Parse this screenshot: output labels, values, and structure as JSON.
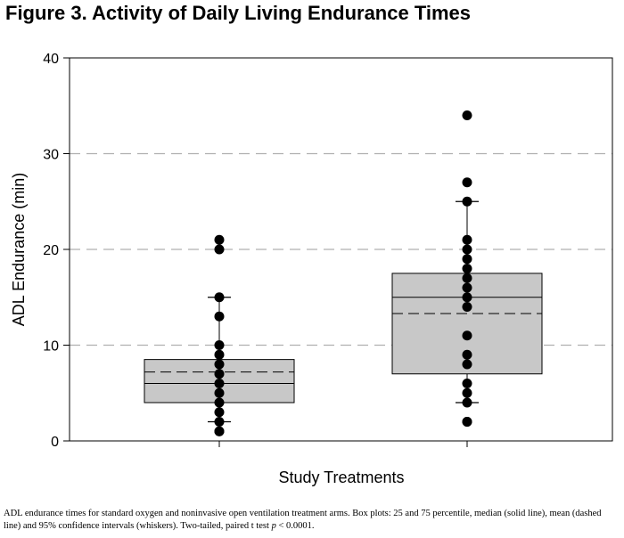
{
  "title": "Figure 3. Activity of Daily Living Endurance Times",
  "caption": {
    "part1": "ADL endurance times for standard oxygen and noninvasive open ventilation treatment arms. Box plots: 25 and 75 percentile, median (solid line), mean (dashed line) and 95% confidence intervals (whiskers). Two-tailed, paired t test ",
    "p_symbol": "p",
    "part2": " < 0.0001."
  },
  "colors": {
    "box_fill": "#c8c8c8",
    "grid": "#b0b0b0",
    "point": "#000000"
  },
  "chart_data": {
    "type": "box",
    "xlabel": "Study Treatments",
    "ylabel": "ADL Endurance (min)",
    "ylim": [
      0,
      40
    ],
    "yticks": [
      "0",
      "10",
      "20",
      "30",
      "40"
    ],
    "grid": "horizontal dashed at 10, 20, 30",
    "groups": [
      {
        "q1": 4,
        "median": 6,
        "q3": 8.5,
        "mean": 7.2,
        "whisker_low": 2,
        "whisker_high": 15,
        "points": [
          1,
          1,
          2,
          3,
          4,
          5,
          6,
          7,
          8,
          9,
          10,
          13,
          15,
          20,
          21
        ]
      },
      {
        "q1": 7,
        "median": 15,
        "q3": 17.5,
        "mean": 13.3,
        "whisker_low": 4,
        "whisker_high": 25,
        "points": [
          2,
          2,
          4,
          5,
          6,
          8,
          9,
          11,
          14,
          15,
          16,
          17,
          18,
          19,
          20,
          21,
          25,
          27,
          34
        ]
      }
    ]
  }
}
